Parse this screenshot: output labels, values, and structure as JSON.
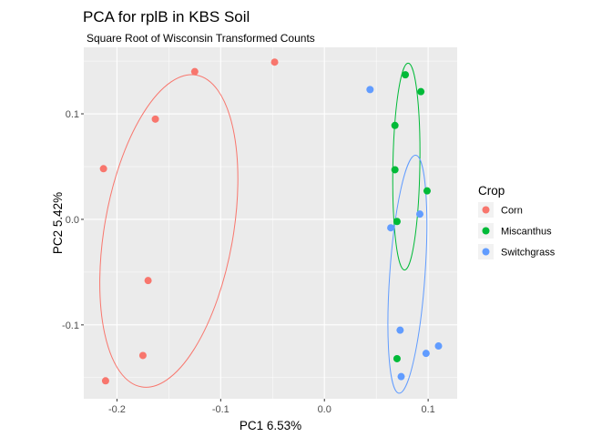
{
  "chart_data": {
    "type": "scatter",
    "title": "PCA for rplB in KBS Soil",
    "subtitle": "Square Root of Wisconsin Transformed Counts",
    "xlabel": "PC1 6.53%",
    "ylabel": "PC2 5.42%",
    "xlim": [
      -0.232,
      0.128
    ],
    "ylim": [
      -0.17,
      0.163
    ],
    "x_ticks": [
      -0.2,
      -0.1,
      0.0,
      0.1
    ],
    "x_tick_labels": [
      "-0.2",
      "-0.1",
      "0.0",
      "0.1"
    ],
    "y_ticks": [
      -0.1,
      0.0,
      0.1
    ],
    "y_tick_labels": [
      "-0.1",
      "0.0",
      "0.1"
    ],
    "grid": true,
    "legend": {
      "title": "Crop",
      "position": "right"
    },
    "series": [
      {
        "name": "Corn",
        "color": "#F8766D",
        "points": [
          [
            -0.048,
            0.149
          ],
          [
            -0.125,
            0.14
          ],
          [
            -0.163,
            0.095
          ],
          [
            -0.213,
            0.048
          ],
          [
            -0.17,
            -0.058
          ],
          [
            -0.175,
            -0.129
          ],
          [
            -0.211,
            -0.153
          ]
        ],
        "ellipse": {
          "center": [
            -0.15,
            -0.011
          ],
          "semi_axes": [
            0.062,
            0.15
          ],
          "angle_deg": 10
        }
      },
      {
        "name": "Miscanthus",
        "color": "#00BA38",
        "points": [
          [
            0.078,
            0.137
          ],
          [
            0.093,
            0.121
          ],
          [
            0.068,
            0.089
          ],
          [
            0.068,
            0.047
          ],
          [
            0.099,
            0.027
          ],
          [
            0.07,
            -0.002
          ],
          [
            0.07,
            -0.132
          ]
        ],
        "ellipse": {
          "center": [
            0.079,
            0.05
          ],
          "semi_axes": [
            0.013,
            0.098
          ],
          "angle_deg": 1
        }
      },
      {
        "name": "Switchgrass",
        "color": "#619CFF",
        "points": [
          [
            0.044,
            0.123
          ],
          [
            0.092,
            0.005
          ],
          [
            0.064,
            -0.008
          ],
          [
            0.073,
            -0.105
          ],
          [
            0.11,
            -0.12
          ],
          [
            0.098,
            -0.127
          ],
          [
            0.074,
            -0.149
          ]
        ],
        "ellipse": {
          "center": [
            0.08,
            -0.052
          ],
          "semi_axes": [
            0.017,
            0.113
          ],
          "angle_deg": 4
        }
      }
    ]
  }
}
